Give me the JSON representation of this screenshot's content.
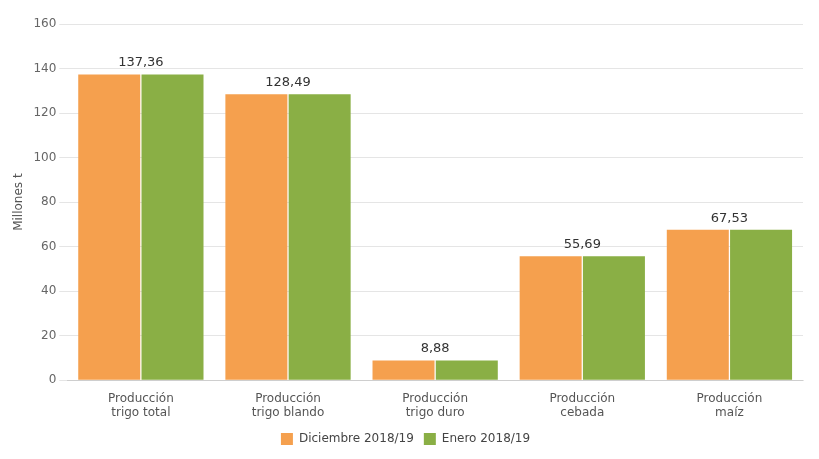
{
  "chart_data": {
    "type": "bar",
    "y_label": "Millones t",
    "categories": [
      "Producción\ntrigo total",
      "Producción\ntrigo blando",
      "Producción\ntrigo duro",
      "Producción\ncebada",
      "Producción\nmaíz"
    ],
    "series": [
      {
        "name": "Diciembre 2018/19",
        "color": "#F5A04E",
        "values": [
          137.36,
          128.49,
          8.88,
          55.69,
          67.53
        ]
      },
      {
        "name": "Enero 2018/19",
        "color": "#8AAF45",
        "values": [
          137.36,
          128.49,
          8.88,
          55.69,
          67.53
        ]
      }
    ],
    "annotations": [
      {
        "x": "Producción\ntrigo total",
        "y": 137.36,
        "text": "137,36"
      },
      {
        "x": "Producción\ntrigo blando",
        "y": 128.49,
        "text": "128,49"
      },
      {
        "x": "Producción\ntrigo duro",
        "y": 8.88,
        "text": "8,88"
      },
      {
        "x": "Producción\ncebada",
        "y": 55.69,
        "text": "55,69"
      },
      {
        "x": "Producción\nmaíz",
        "y": 67.53,
        "text": "67,53"
      }
    ],
    "ylim": [
      0,
      160
    ],
    "yticks": [
      0,
      20,
      40,
      60,
      80,
      100,
      120,
      140,
      160
    ],
    "grid": true,
    "legend": "bottom"
  }
}
